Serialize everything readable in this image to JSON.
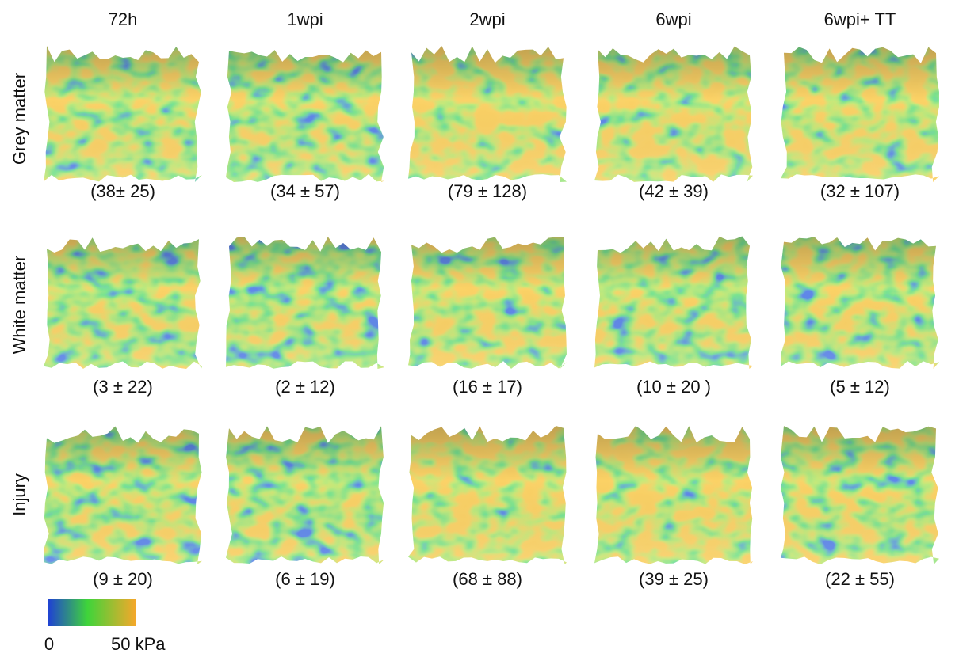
{
  "columns": [
    "72h",
    "1wpi",
    "2wpi",
    "6wpi",
    "6wpi+ TT"
  ],
  "rows": [
    {
      "label": "Grey matter",
      "captions": [
        "(38± 25)",
        "(34 ± 57)",
        "(79 ± 128)",
        "(42 ± 39)",
        "(32 ± 107)"
      ]
    },
    {
      "label": "White matter",
      "captions": [
        "(3 ± 22)",
        "(2 ± 12)",
        "(16 ± 17)",
        "(10 ± 20 )",
        "(5 ± 12)"
      ]
    },
    {
      "label": "Injury",
      "captions": [
        "(9 ± 20)",
        "(6 ± 19)",
        "(68 ± 88)",
        "(39 ± 25)",
        "(22 ± 55)"
      ]
    }
  ],
  "colorbar": {
    "min_label": "0",
    "max_label": "50 kPa"
  }
}
